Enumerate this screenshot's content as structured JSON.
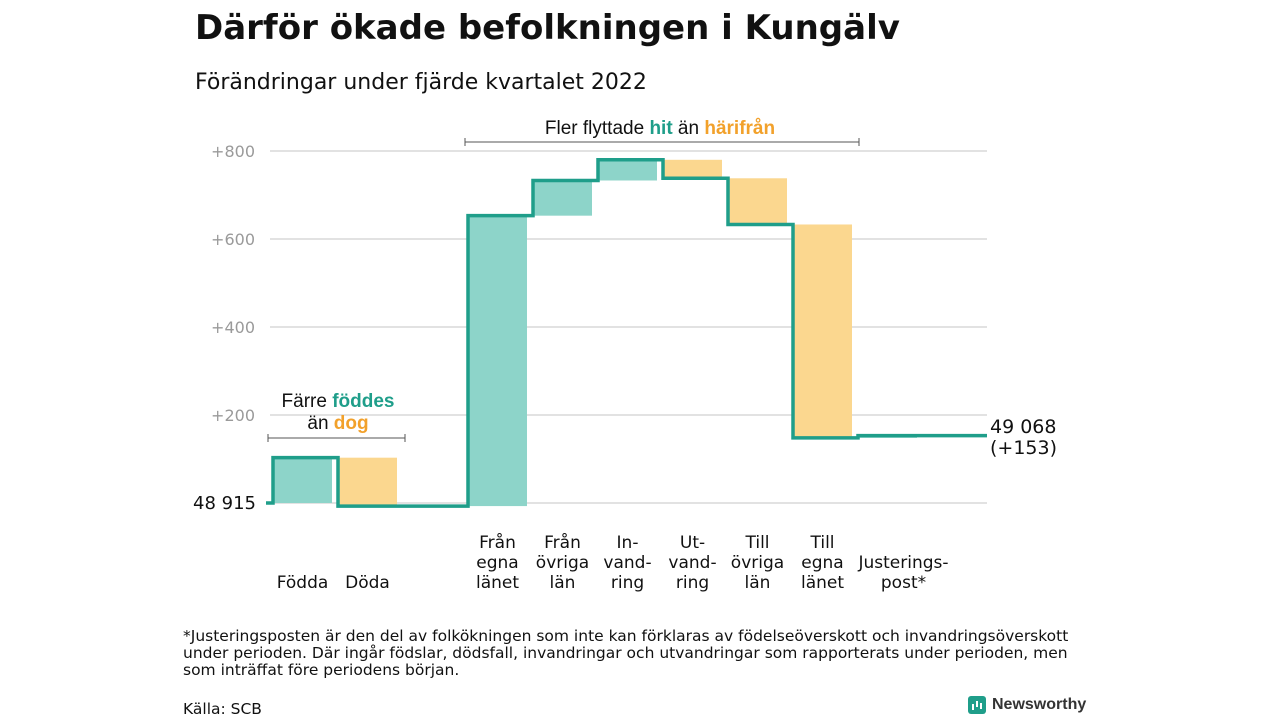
{
  "header": {
    "title": "Därför ökade befolkningen i Kungälv",
    "subtitle": "Förändringar under fjärde kvartalet 2022"
  },
  "colors": {
    "in": "#8dd4c9",
    "out": "#fbd78f",
    "line": "#1f9e8a",
    "in_text": "#1f9e8a",
    "out_text": "#f2a12b"
  },
  "chart_data": {
    "type": "waterfall",
    "ylim": [
      0,
      800
    ],
    "yticks": [
      "+200",
      "+400",
      "+600",
      "+800"
    ],
    "start": {
      "value": 48915,
      "label": "48 915"
    },
    "end": {
      "value": 49068,
      "label_line1": "49 068",
      "label_line2": "(+153)"
    },
    "steps": [
      {
        "label_lines": [
          "Födda"
        ],
        "change": 103,
        "kind": "in"
      },
      {
        "label_lines": [
          "Döda"
        ],
        "change": -110,
        "kind": "out"
      },
      {
        "label_lines": [],
        "change": 0,
        "kind": "in"
      },
      {
        "label_lines": [
          "Från",
          "egna",
          "länet"
        ],
        "change": 660,
        "kind": "in"
      },
      {
        "label_lines": [
          "Från",
          "övriga",
          "län"
        ],
        "change": 80,
        "kind": "in"
      },
      {
        "label_lines": [
          "In-",
          "vand-",
          "ring"
        ],
        "change": 47,
        "kind": "in"
      },
      {
        "label_lines": [
          "Ut-",
          "vand-",
          "ring"
        ],
        "change": -42,
        "kind": "out"
      },
      {
        "label_lines": [
          "Till",
          "övriga",
          "län"
        ],
        "change": -105,
        "kind": "out"
      },
      {
        "label_lines": [
          "Till",
          "egna",
          "länet"
        ],
        "change": -485,
        "kind": "out"
      },
      {
        "label_lines": [
          "Justerings-",
          "post*"
        ],
        "change": 5,
        "kind": "in"
      }
    ],
    "annotations": {
      "births": {
        "line1_prefix": "Färre ",
        "line1_hl": "föddes",
        "line2_prefix": "än ",
        "line2_hl": "dog"
      },
      "moves": {
        "prefix": "Fler flyttade ",
        "hl1": "hit",
        "middle": " än ",
        "hl2": "härifrån"
      }
    },
    "grid": true
  },
  "footnote": "*Justeringsposten är den del av folkökningen som inte kan förklaras av födelseöverskott och invandringsöverskott under perioden. Där ingår födslar, dödsfall, invandringar och utvandringar som rapporterats under perioden, men som inträffat före periodens början.",
  "source": "Källa: SCB",
  "brand": {
    "name": "Newsworthy",
    "icon": "bar-chart-icon"
  }
}
